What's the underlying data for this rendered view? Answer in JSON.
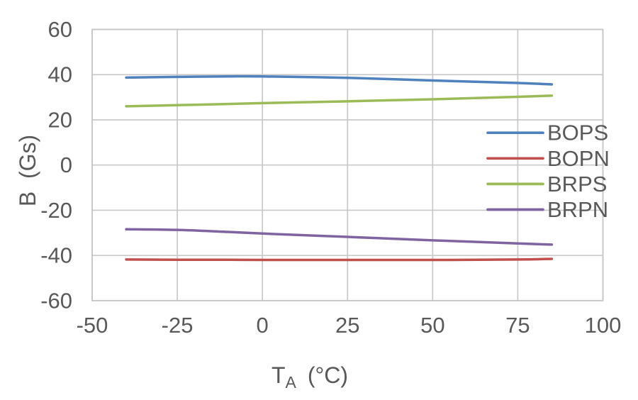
{
  "chart_data": {
    "type": "line",
    "title": "",
    "xlabel_base": "T",
    "xlabel_sub": "A",
    "xlabel_unit": "(°C)",
    "ylabel": "B  (Gs)",
    "xlim": [
      -50,
      100
    ],
    "ylim": [
      -60,
      60
    ],
    "x_ticks": [
      -50,
      -25,
      0,
      25,
      50,
      75,
      100
    ],
    "y_ticks": [
      60,
      40,
      20,
      0,
      -20,
      -40,
      -60
    ],
    "grid": true,
    "legend_position": "inside-right",
    "x": [
      -40,
      -25,
      -10,
      0,
      25,
      50,
      75,
      85
    ],
    "series": [
      {
        "name": "BOPS",
        "color": "#4F81BD",
        "values": [
          38.7,
          39.0,
          39.2,
          39.2,
          38.6,
          37.4,
          36.3,
          35.7
        ]
      },
      {
        "name": "BOPN",
        "color": "#C0504D",
        "values": [
          -41.8,
          -41.9,
          -41.9,
          -42.0,
          -42.0,
          -42.0,
          -41.8,
          -41.5
        ]
      },
      {
        "name": "BRPS",
        "color": "#9BBB59",
        "values": [
          26.0,
          26.5,
          27.0,
          27.4,
          28.2,
          29.1,
          30.2,
          30.7
        ]
      },
      {
        "name": "BRPN",
        "color": "#8064A2",
        "values": [
          -28.4,
          -28.7,
          -29.6,
          -30.3,
          -31.8,
          -33.3,
          -34.7,
          -35.2
        ]
      }
    ],
    "colors": {
      "axis_text": "#595959",
      "gridline": "#C9C9C9",
      "plot_border": "#C6C6C6",
      "background": "#FFFFFF"
    }
  }
}
